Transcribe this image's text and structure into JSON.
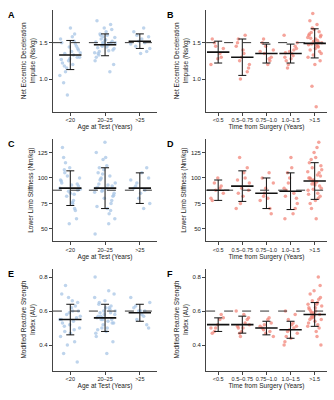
{
  "chart_data": [
    {
      "type": "scatter",
      "panel_label": "A",
      "x_label": "Age at Test (Years)",
      "y_label": "Net Eccentric Deceleration\nImpulse (Ns/kg)",
      "categories": [
        "<20",
        "20–25",
        ">25"
      ],
      "color": "#a8c5e6",
      "marker": "circle",
      "line_style": "dash",
      "reference_line": 1.5,
      "ylim": [
        0.55,
        1.95
      ],
      "yticks": [
        {
          "value": 1.0,
          "label": "1.0"
        },
        1.5
      ],
      "points": [
        [
          1.05,
          1.2,
          1.35,
          1.42,
          1.28,
          1.5,
          1.62,
          1.15,
          1.3,
          1.38,
          0.95,
          1.45,
          1.25,
          1.55,
          1.33,
          1.1,
          1.4,
          1.7,
          1.22,
          1.48,
          0.78,
          1.36,
          1.58,
          1.18,
          1.3,
          1.44,
          1.27,
          1.52
        ],
        [
          1.45,
          1.5,
          1.6,
          1.38,
          1.52,
          1.7,
          1.3,
          1.48,
          1.55,
          1.42,
          1.65,
          1.35,
          1.5,
          1.58,
          1.25,
          1.47,
          1.62,
          1.4,
          1.53,
          1.8,
          1.1,
          1.46,
          1.57,
          1.44,
          1.33,
          1.68,
          1.49,
          1.51,
          1.39,
          1.6,
          1.2,
          1.54,
          1.43,
          1.75,
          1.5,
          1.36
        ],
        [
          1.5,
          1.6,
          1.42,
          1.55,
          1.65,
          1.38,
          1.52,
          1.48,
          1.7,
          1.45,
          1.58,
          1.35
        ]
      ],
      "means": [
        1.33,
        1.47,
        1.52
      ],
      "sd": [
        0.2,
        0.15,
        0.1
      ]
    },
    {
      "type": "scatter",
      "panel_label": "B",
      "x_label": "Time from Surgery (Years)",
      "y_label": "Net Eccentric Deceleration\nImpulse (Ns/kg)",
      "categories": [
        "<0.5",
        "0.5–0.75",
        "0.75–1.0",
        "1.0–1.5",
        ">1.5"
      ],
      "color": "#f2857a",
      "marker": "circle",
      "line_style": "dash",
      "reference_line": 1.5,
      "ylim": [
        0.55,
        1.95
      ],
      "yticks": [
        {
          "value": 1.0,
          "label": "1.0"
        },
        1.5
      ],
      "points": [
        [
          1.2,
          1.35,
          1.5,
          1.42,
          1.28,
          1.55,
          1.3,
          1.45
        ],
        [
          1.0,
          1.2,
          1.35,
          1.55,
          1.1,
          1.3,
          1.45,
          1.6,
          1.25,
          1.15,
          1.4,
          1.5
        ],
        [
          1.25,
          1.35,
          1.4,
          1.2,
          1.5,
          1.3,
          1.45,
          1.38,
          1.28,
          1.55
        ],
        [
          1.3,
          1.4,
          1.2,
          1.5,
          1.35,
          1.25,
          1.45,
          1.38,
          1.6,
          1.32,
          1.15,
          1.42,
          1.28,
          1.36
        ],
        [
          1.5,
          1.6,
          1.45,
          1.7,
          1.35,
          1.55,
          1.4,
          1.65,
          1.52,
          1.3,
          1.75,
          1.48,
          1.58,
          1.2,
          1.62,
          1.44,
          1.9,
          1.5,
          0.62,
          1.56,
          1.38,
          1.68,
          1.47,
          1.53,
          0.9,
          1.6,
          1.42,
          1.8,
          1.5,
          1.33,
          1.57,
          1.46,
          1.64,
          1.25
        ]
      ],
      "means": [
        1.37,
        1.3,
        1.35,
        1.35,
        1.49
      ],
      "sd": [
        0.15,
        0.25,
        0.13,
        0.13,
        0.2
      ]
    },
    {
      "type": "scatter",
      "panel_label": "C",
      "x_label": "Age at Test (Years)",
      "y_label": "Lower Limb Stiffness (Nm/kg)",
      "categories": [
        "<20",
        "20–25",
        ">25"
      ],
      "color": "#a8c5e6",
      "marker": "circle",
      "line_style": "dash",
      "reference_line": 88,
      "ylim": [
        38,
        138
      ],
      "yticks": [
        50,
        75,
        100,
        125
      ],
      "points": [
        [
          90,
          75,
          105,
          88,
          110,
          95,
          70,
          82,
          100,
          93,
          120,
          60,
          87,
          98,
          78,
          115,
          92,
          85,
          130,
          68,
          102,
          89,
          76,
          108,
          94,
          55,
          97,
          84
        ],
        [
          88,
          95,
          70,
          110,
          92,
          80,
          125,
          65,
          100,
          85,
          90,
          105,
          75,
          118,
          45,
          93,
          98,
          82,
          135,
          72,
          102,
          87,
          60,
          112,
          94,
          78,
          108,
          90,
          55,
          99,
          83,
          120,
          91,
          68,
          104,
          86
        ],
        [
          88,
          95,
          75,
          105,
          90,
          110,
          80,
          98,
          70,
          92,
          100,
          85
        ]
      ],
      "means": [
        90,
        90,
        90
      ],
      "sd": [
        17,
        20,
        15
      ]
    },
    {
      "type": "scatter",
      "panel_label": "D",
      "x_label": "Time from Surgery (Years)",
      "y_label": "Lower Limb Stiffness (Nm/kg)",
      "categories": [
        "<0.5",
        "0.5–0.75",
        "0.75–1.0",
        "1.0–1.5",
        ">1.5"
      ],
      "color": "#f2857a",
      "marker": "circle",
      "line_style": "dash",
      "reference_line": 88,
      "ylim": [
        38,
        138
      ],
      "yticks": [
        50,
        75,
        100,
        125
      ],
      "points": [
        [
          80,
          90,
          95,
          85,
          100,
          78,
          92,
          88
        ],
        [
          75,
          95,
          105,
          85,
          110,
          90,
          70,
          100,
          120,
          88,
          82,
          98
        ],
        [
          70,
          85,
          95,
          80,
          100,
          65,
          90,
          78,
          105,
          82
        ],
        [
          60,
          85,
          95,
          75,
          110,
          88,
          70,
          100,
          90,
          65,
          105,
          80,
          120,
          82
        ],
        [
          95,
          100,
          85,
          110,
          90,
          120,
          75,
          105,
          98,
          88,
          130,
          70,
          102,
          93,
          115,
          80,
          97,
          108,
          60,
          99,
          92,
          125,
          84,
          103,
          94,
          112,
          78,
          100,
          135,
          89,
          106,
          96,
          118,
          82
        ]
      ],
      "means": [
        88,
        92,
        85,
        87,
        97
      ],
      "sd": [
        10,
        15,
        15,
        18,
        18
      ]
    },
    {
      "type": "scatter",
      "panel_label": "E",
      "x_label": "Age at Test (Years)",
      "y_label": "Modified Reactive Strength\nIndex (AU)",
      "categories": [
        "<20",
        "20–25",
        ">25"
      ],
      "color": "#a8c5e6",
      "marker": "circle",
      "line_style": "dash",
      "reference_line": 0.6,
      "ylim": [
        0.25,
        0.85
      ],
      "yticks": [
        0.4,
        0.6,
        0.8
      ],
      "points": [
        [
          0.55,
          0.6,
          0.48,
          0.65,
          0.52,
          0.7,
          0.42,
          0.58,
          0.5,
          0.62,
          0.35,
          0.56,
          0.68,
          0.45,
          0.54,
          0.75,
          0.6,
          0.47,
          0.53,
          0.63,
          0.4,
          0.57,
          0.66,
          0.51,
          0.3,
          0.59,
          0.55,
          0.49
        ],
        [
          0.56,
          0.6,
          0.5,
          0.65,
          0.53,
          0.58,
          0.45,
          0.62,
          0.55,
          0.7,
          0.48,
          0.57,
          0.63,
          0.52,
          0.8,
          0.54,
          0.59,
          0.42,
          0.66,
          0.56,
          0.61,
          0.5,
          0.58,
          0.35,
          0.64,
          0.55,
          0.6,
          0.47,
          0.72,
          0.57,
          0.53,
          0.62,
          0.49,
          0.59,
          0.55,
          0.68
        ],
        [
          0.6,
          0.55,
          0.65,
          0.58,
          0.62,
          0.52,
          0.6,
          0.68,
          0.57,
          0.63,
          0.5,
          0.6
        ]
      ],
      "means": [
        0.55,
        0.56,
        0.59
      ],
      "sd": [
        0.09,
        0.08,
        0.05
      ]
    },
    {
      "type": "scatter",
      "panel_label": "F",
      "x_label": "Time from Surgery (Years)",
      "y_label": "Modified Reactive Strength\nIndex (AU)",
      "categories": [
        "<0.5",
        "0.5–0.75",
        "0.75–1.0",
        "1.0–1.5",
        ">1.5"
      ],
      "color": "#f2857a",
      "marker": "circle",
      "line_style": "dash",
      "reference_line": 0.6,
      "ylim": [
        0.25,
        0.85
      ],
      "yticks": [
        0.4,
        0.6,
        0.8
      ],
      "points": [
        [
          0.5,
          0.55,
          0.48,
          0.56,
          0.52,
          0.47,
          0.58,
          0.5
        ],
        [
          0.45,
          0.52,
          0.58,
          0.5,
          0.55,
          0.48,
          0.6,
          0.53,
          0.47,
          0.56,
          0.5,
          0.51
        ],
        [
          0.48,
          0.52,
          0.45,
          0.55,
          0.5,
          0.53,
          0.47,
          0.51,
          0.56,
          0.49
        ],
        [
          0.42,
          0.5,
          0.55,
          0.47,
          0.52,
          0.45,
          0.58,
          0.49,
          0.4,
          0.53,
          0.48,
          0.51,
          0.44,
          0.6
        ],
        [
          0.58,
          0.62,
          0.52,
          0.66,
          0.55,
          0.6,
          0.7,
          0.5,
          0.57,
          0.64,
          0.45,
          0.59,
          0.68,
          0.54,
          0.61,
          0.8,
          0.56,
          0.63,
          0.48,
          0.6,
          0.58,
          0.72,
          0.53,
          0.65,
          0.57,
          0.4,
          0.62,
          0.55,
          0.67,
          0.59,
          0.51,
          0.64,
          0.56,
          0.75
        ]
      ],
      "means": [
        0.52,
        0.52,
        0.5,
        0.49,
        0.58
      ],
      "sd": [
        0.04,
        0.05,
        0.04,
        0.05,
        0.07
      ]
    }
  ]
}
